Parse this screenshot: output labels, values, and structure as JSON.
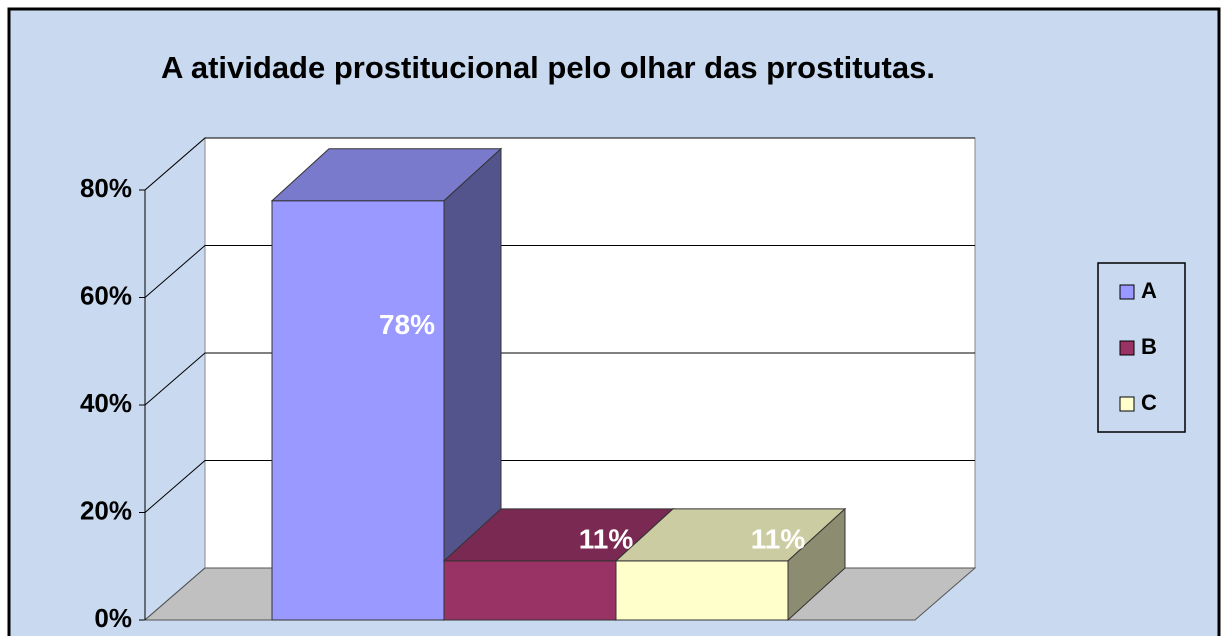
{
  "chart_data": {
    "type": "bar3d",
    "title": "A atividade prostitucional pelo olhar das prostitutas.",
    "series": [
      {
        "name": "A",
        "color": "#9999ff",
        "values": [
          78
        ],
        "value_labels": [
          "78%"
        ]
      },
      {
        "name": "B",
        "color": "#993366",
        "values": [
          11
        ],
        "value_labels": [
          "11%"
        ]
      },
      {
        "name": "C",
        "color": "#ffffcc",
        "values": [
          11
        ],
        "value_labels": [
          "11%"
        ]
      }
    ],
    "ylim": [
      0,
      80
    ],
    "yticks": [
      {
        "value": 0,
        "label": "0%"
      },
      {
        "value": 20,
        "label": "20%"
      },
      {
        "value": 40,
        "label": "40%"
      },
      {
        "value": 60,
        "label": "60%"
      },
      {
        "value": 80,
        "label": "80%"
      }
    ],
    "grid": true,
    "legend": "right"
  }
}
